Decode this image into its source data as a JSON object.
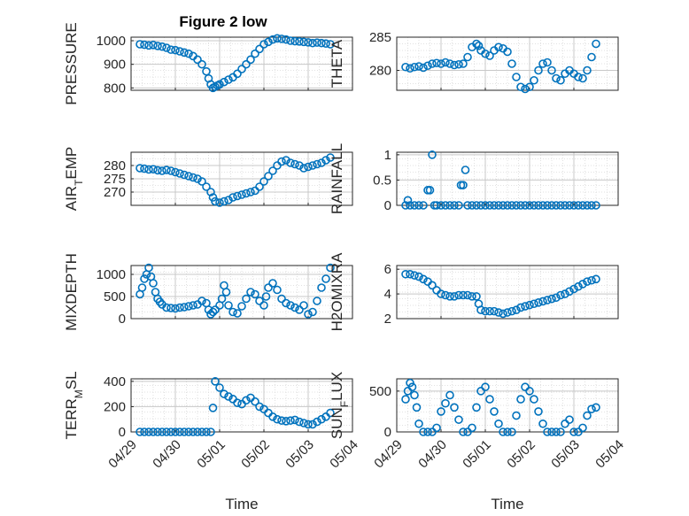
{
  "figure": {
    "title": "Figure 2 low"
  },
  "chart_data": [
    {
      "type": "scatter",
      "ylabel": "PRESSURE",
      "xlabel": "",
      "xlim": [
        0,
        5
      ],
      "ylim": [
        790,
        1015
      ],
      "yticks": [
        800,
        900,
        1000
      ],
      "xticks": [
        0,
        1,
        2,
        3,
        4,
        5
      ],
      "xtick_labels": [],
      "grid": true,
      "series": [
        {
          "color": "#0072BD",
          "x": [
            0.2,
            0.3,
            0.4,
            0.5,
            0.6,
            0.7,
            0.8,
            0.9,
            1.0,
            1.1,
            1.2,
            1.3,
            1.4,
            1.5,
            1.6,
            1.7,
            1.75,
            1.8,
            1.85,
            1.9,
            1.95,
            2.0,
            2.1,
            2.2,
            2.3,
            2.4,
            2.5,
            2.6,
            2.7,
            2.8,
            2.9,
            3.0,
            3.1,
            3.2,
            3.3,
            3.4,
            3.5,
            3.6,
            3.7,
            3.8,
            3.9,
            4.0,
            4.1,
            4.2,
            4.3,
            4.4,
            4.5
          ],
          "y": [
            985,
            983,
            980,
            982,
            978,
            975,
            970,
            962,
            960,
            955,
            950,
            945,
            935,
            920,
            900,
            870,
            840,
            815,
            800,
            805,
            810,
            815,
            825,
            835,
            845,
            860,
            880,
            900,
            920,
            945,
            965,
            985,
            995,
            1005,
            1010,
            1008,
            1005,
            1000,
            998,
            997,
            995,
            993,
            990,
            992,
            990,
            988,
            985
          ]
        }
      ]
    },
    {
      "type": "scatter",
      "ylabel": "THETA",
      "xlabel": "",
      "xlim": [
        0,
        5
      ],
      "ylim": [
        277,
        285
      ],
      "yticks": [
        280,
        285
      ],
      "xticks": [
        0,
        1,
        2,
        3,
        4,
        5
      ],
      "xtick_labels": [],
      "grid": true,
      "series": [
        {
          "color": "#0072BD",
          "x": [
            0.2,
            0.3,
            0.4,
            0.5,
            0.6,
            0.7,
            0.8,
            0.9,
            1.0,
            1.1,
            1.2,
            1.3,
            1.4,
            1.5,
            1.6,
            1.7,
            1.8,
            1.85,
            1.9,
            2.0,
            2.1,
            2.2,
            2.3,
            2.4,
            2.5,
            2.6,
            2.7,
            2.8,
            2.9,
            3.0,
            3.1,
            3.2,
            3.3,
            3.4,
            3.5,
            3.6,
            3.7,
            3.8,
            3.9,
            4.0,
            4.1,
            4.2,
            4.3,
            4.4,
            4.5
          ],
          "y": [
            280.5,
            280.3,
            280.5,
            280.6,
            280.4,
            280.7,
            281.0,
            281.1,
            281.0,
            281.2,
            281.0,
            280.8,
            280.9,
            281.0,
            282.0,
            283.5,
            284.0,
            283.7,
            283.0,
            282.5,
            282.2,
            283.0,
            283.5,
            283.3,
            282.8,
            281.0,
            279.0,
            277.5,
            277.2,
            277.5,
            278.5,
            280.0,
            281.0,
            281.2,
            280.0,
            278.8,
            278.5,
            279.5,
            280.0,
            279.5,
            279.0,
            278.8,
            280.0,
            282.0,
            284.0
          ]
        }
      ]
    },
    {
      "type": "scatter",
      "ylabel": "AIR_TEMP",
      "xlabel": "",
      "xlim": [
        0,
        5
      ],
      "ylim": [
        265,
        285
      ],
      "yticks": [
        270,
        275,
        280
      ],
      "xticks": [
        0,
        1,
        2,
        3,
        4,
        5
      ],
      "xtick_labels": [],
      "grid": true,
      "series": [
        {
          "color": "#0072BD",
          "x": [
            0.2,
            0.3,
            0.4,
            0.5,
            0.6,
            0.7,
            0.8,
            0.9,
            1.0,
            1.1,
            1.2,
            1.3,
            1.4,
            1.5,
            1.6,
            1.7,
            1.8,
            1.85,
            1.9,
            2.0,
            2.1,
            2.2,
            2.3,
            2.4,
            2.5,
            2.6,
            2.7,
            2.8,
            2.9,
            3.0,
            3.1,
            3.2,
            3.3,
            3.4,
            3.5,
            3.6,
            3.7,
            3.8,
            3.9,
            4.0,
            4.1,
            4.2,
            4.3,
            4.4,
            4.5
          ],
          "y": [
            279.0,
            278.8,
            278.5,
            278.6,
            278.2,
            278.0,
            278.3,
            278.0,
            277.5,
            277.0,
            276.5,
            276.0,
            275.5,
            275.0,
            274.0,
            272.0,
            270.0,
            268.0,
            266.5,
            266.0,
            266.5,
            267.0,
            268.0,
            268.5,
            269.0,
            269.5,
            270.0,
            270.5,
            272.0,
            274.0,
            276.0,
            278.0,
            280.0,
            281.5,
            282.0,
            281.0,
            280.5,
            280.0,
            279.0,
            279.5,
            280.0,
            280.5,
            281.0,
            282.0,
            283.0
          ]
        }
      ]
    },
    {
      "type": "scatter",
      "ylabel": "RAINFALL",
      "xlabel": "",
      "xlim": [
        0,
        5
      ],
      "ylim": [
        0,
        1.05
      ],
      "yticks": [
        0,
        0.5,
        1
      ],
      "xticks": [
        0,
        1,
        2,
        3,
        4,
        5
      ],
      "xtick_labels": [],
      "grid": true,
      "series": [
        {
          "color": "#0072BD",
          "x": [
            0.2,
            0.25,
            0.3,
            0.4,
            0.5,
            0.6,
            0.7,
            0.75,
            0.8,
            0.85,
            0.9,
            1.0,
            1.1,
            1.2,
            1.3,
            1.4,
            1.45,
            1.5,
            1.55,
            1.6,
            1.7,
            1.8,
            1.9,
            2.0,
            2.1,
            2.2,
            2.3,
            2.4,
            2.5,
            2.6,
            2.7,
            2.8,
            2.9,
            3.0,
            3.1,
            3.2,
            3.3,
            3.4,
            3.5,
            3.6,
            3.7,
            3.8,
            3.9,
            4.0,
            4.1,
            4.2,
            4.3,
            4.4,
            4.5
          ],
          "y": [
            0,
            0.1,
            0,
            0,
            0,
            0,
            0.3,
            0.3,
            1.0,
            0,
            0,
            0,
            0,
            0,
            0,
            0,
            0.4,
            0.4,
            0.7,
            0,
            0,
            0,
            0,
            0,
            0,
            0,
            0,
            0,
            0,
            0,
            0,
            0,
            0,
            0,
            0,
            0,
            0,
            0,
            0,
            0,
            0,
            0,
            0,
            0,
            0,
            0,
            0,
            0,
            0
          ]
        }
      ]
    },
    {
      "type": "scatter",
      "ylabel": "MIXDEPTH",
      "xlabel": "",
      "xlim": [
        0,
        5
      ],
      "ylim": [
        0,
        1200
      ],
      "yticks": [
        0,
        500,
        1000
      ],
      "xticks": [
        0,
        1,
        2,
        3,
        4,
        5
      ],
      "xtick_labels": [],
      "grid": true,
      "series": [
        {
          "color": "#0072BD",
          "x": [
            0.2,
            0.25,
            0.3,
            0.35,
            0.4,
            0.45,
            0.5,
            0.55,
            0.6,
            0.65,
            0.7,
            0.8,
            0.9,
            1.0,
            1.1,
            1.2,
            1.3,
            1.4,
            1.5,
            1.6,
            1.7,
            1.75,
            1.8,
            1.85,
            1.9,
            2.0,
            2.05,
            2.1,
            2.15,
            2.2,
            2.3,
            2.4,
            2.5,
            2.6,
            2.7,
            2.8,
            2.9,
            3.0,
            3.05,
            3.1,
            3.2,
            3.3,
            3.4,
            3.5,
            3.6,
            3.7,
            3.8,
            3.9,
            4.0,
            4.1,
            4.2,
            4.3,
            4.4,
            4.5
          ],
          "y": [
            550,
            700,
            900,
            1000,
            1150,
            950,
            800,
            600,
            450,
            380,
            320,
            250,
            240,
            230,
            250,
            260,
            280,
            300,
            320,
            400,
            350,
            200,
            100,
            150,
            200,
            300,
            450,
            750,
            600,
            300,
            150,
            120,
            280,
            450,
            600,
            550,
            400,
            300,
            500,
            700,
            800,
            650,
            450,
            350,
            300,
            250,
            200,
            300,
            100,
            150,
            400,
            700,
            900,
            1150
          ]
        }
      ]
    },
    {
      "type": "scatter",
      "ylabel": "H2OMIXRA",
      "xlabel": "",
      "xlim": [
        0,
        5
      ],
      "ylim": [
        2,
        6.3
      ],
      "yticks": [
        2,
        4,
        6
      ],
      "xticks": [
        0,
        1,
        2,
        3,
        4,
        5
      ],
      "xtick_labels": [],
      "grid": true,
      "series": [
        {
          "color": "#0072BD",
          "x": [
            0.2,
            0.3,
            0.4,
            0.5,
            0.6,
            0.7,
            0.8,
            0.9,
            1.0,
            1.1,
            1.2,
            1.3,
            1.4,
            1.5,
            1.6,
            1.7,
            1.8,
            1.85,
            1.9,
            2.0,
            2.1,
            2.2,
            2.3,
            2.4,
            2.5,
            2.6,
            2.7,
            2.8,
            2.9,
            3.0,
            3.1,
            3.2,
            3.3,
            3.4,
            3.5,
            3.6,
            3.7,
            3.8,
            3.9,
            4.0,
            4.1,
            4.2,
            4.3,
            4.4,
            4.5
          ],
          "y": [
            5.6,
            5.6,
            5.5,
            5.4,
            5.2,
            5.0,
            4.7,
            4.3,
            4.0,
            3.9,
            3.8,
            3.8,
            3.9,
            3.9,
            3.9,
            3.8,
            3.8,
            3.2,
            2.7,
            2.6,
            2.6,
            2.6,
            2.5,
            2.4,
            2.5,
            2.6,
            2.7,
            2.9,
            3.0,
            3.1,
            3.2,
            3.3,
            3.4,
            3.5,
            3.6,
            3.7,
            3.9,
            4.0,
            4.2,
            4.4,
            4.6,
            4.8,
            5.0,
            5.1,
            5.2
          ]
        }
      ]
    },
    {
      "type": "scatter",
      "ylabel": "TERR_MSL",
      "xlabel": "Time",
      "xlim": [
        0,
        5
      ],
      "ylim": [
        0,
        420
      ],
      "yticks": [
        0,
        200,
        400
      ],
      "xticks": [
        0,
        1,
        2,
        3,
        4,
        5
      ],
      "xtick_labels": [
        "04/29",
        "04/30",
        "05/01",
        "05/02",
        "05/03",
        "05/04"
      ],
      "grid": true,
      "series": [
        {
          "color": "#0072BD",
          "x": [
            0.2,
            0.3,
            0.4,
            0.5,
            0.6,
            0.7,
            0.8,
            0.9,
            1.0,
            1.1,
            1.2,
            1.3,
            1.4,
            1.5,
            1.6,
            1.7,
            1.8,
            1.85,
            1.9,
            2.0,
            2.1,
            2.2,
            2.3,
            2.4,
            2.5,
            2.6,
            2.7,
            2.8,
            2.9,
            3.0,
            3.1,
            3.2,
            3.3,
            3.4,
            3.5,
            3.6,
            3.7,
            3.8,
            3.9,
            4.0,
            4.1,
            4.2,
            4.3,
            4.4,
            4.5
          ],
          "y": [
            0,
            0,
            0,
            0,
            0,
            0,
            0,
            0,
            0,
            0,
            0,
            0,
            0,
            0,
            0,
            0,
            0,
            190,
            400,
            350,
            300,
            280,
            260,
            230,
            220,
            250,
            270,
            240,
            200,
            180,
            150,
            120,
            100,
            90,
            85,
            90,
            95,
            80,
            70,
            60,
            60,
            80,
            100,
            120,
            150
          ]
        }
      ]
    },
    {
      "type": "scatter",
      "ylabel": "SUN_FLUX",
      "xlabel": "Time",
      "xlim": [
        0,
        5
      ],
      "ylim": [
        0,
        650
      ],
      "yticks": [
        0,
        500
      ],
      "xticks": [
        0,
        1,
        2,
        3,
        4,
        5
      ],
      "xtick_labels": [
        "04/29",
        "04/30",
        "05/01",
        "05/02",
        "05/03",
        "05/04"
      ],
      "grid": true,
      "series": [
        {
          "color": "#0072BD",
          "x": [
            0.2,
            0.25,
            0.3,
            0.35,
            0.4,
            0.45,
            0.5,
            0.6,
            0.7,
            0.8,
            0.9,
            1.0,
            1.1,
            1.2,
            1.3,
            1.4,
            1.5,
            1.6,
            1.7,
            1.8,
            1.9,
            2.0,
            2.1,
            2.2,
            2.3,
            2.4,
            2.5,
            2.6,
            2.7,
            2.8,
            2.9,
            3.0,
            3.1,
            3.2,
            3.3,
            3.4,
            3.5,
            3.6,
            3.7,
            3.8,
            3.9,
            4.0,
            4.1,
            4.2,
            4.3,
            4.4,
            4.5
          ],
          "y": [
            400,
            500,
            600,
            550,
            450,
            300,
            100,
            0,
            0,
            0,
            50,
            250,
            350,
            450,
            300,
            150,
            0,
            0,
            50,
            300,
            500,
            550,
            400,
            250,
            100,
            0,
            0,
            0,
            200,
            400,
            550,
            500,
            400,
            250,
            100,
            0,
            0,
            0,
            0,
            100,
            150,
            0,
            0,
            50,
            200,
            280,
            300
          ]
        }
      ]
    }
  ]
}
